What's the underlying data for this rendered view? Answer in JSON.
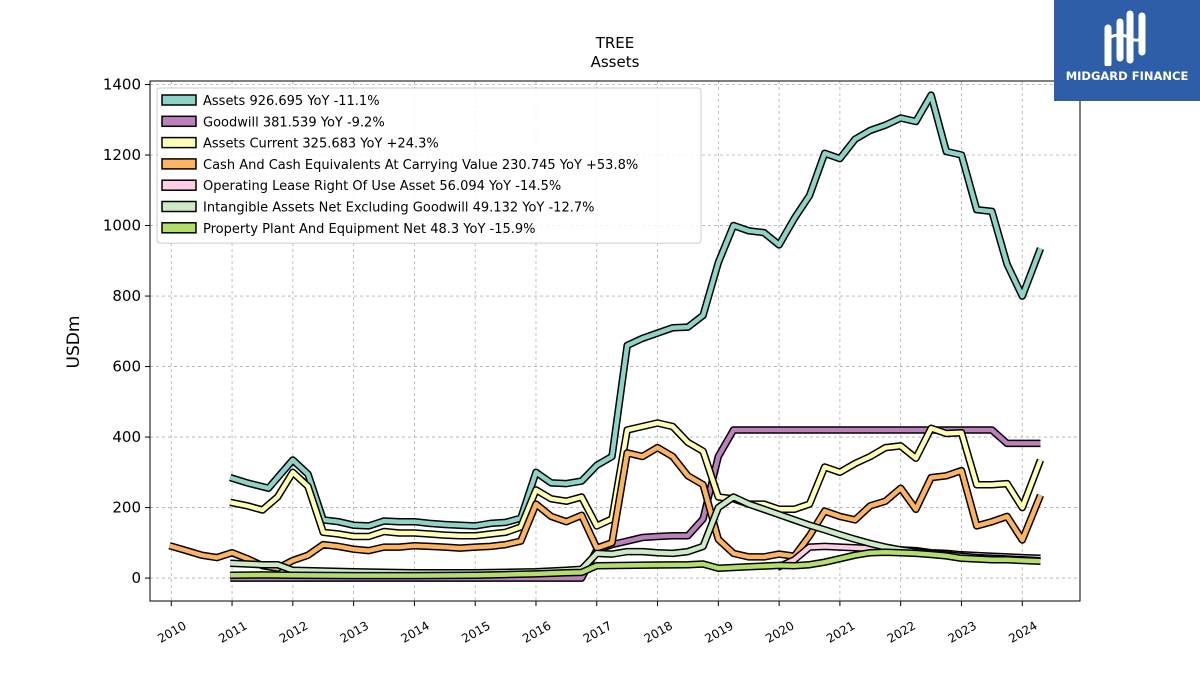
{
  "chart_data": {
    "type": "line",
    "title": "TREE",
    "subtitle": "Assets",
    "ylabel": "USDm",
    "xlabel": "",
    "ylim": [
      -65,
      1410
    ],
    "xlim": [
      2009.65,
      2024.95
    ],
    "x_ticks": [
      2010,
      2011,
      2012,
      2013,
      2014,
      2015,
      2016,
      2017,
      2018,
      2019,
      2020,
      2021,
      2022,
      2023,
      2024
    ],
    "x_tick_labels": [
      "2010",
      "2011",
      "2012",
      "2013",
      "2014",
      "2015",
      "2016",
      "2017",
      "2018",
      "2019",
      "2020",
      "2021",
      "2022",
      "2023",
      "2024"
    ],
    "y_ticks": [
      0,
      200,
      400,
      600,
      800,
      1000,
      1200,
      1400
    ],
    "y_tick_labels": [
      "0",
      "200",
      "400",
      "600",
      "800",
      "1000",
      "1200",
      "1400"
    ],
    "grid": true,
    "legend_position": "top-left",
    "series": [
      {
        "name": "Assets",
        "legend": "Assets  926.695 YoY -11.1%",
        "color": "#8dd3c7",
        "points": [
          [
            2010.97,
            285
          ],
          [
            2011.25,
            270
          ],
          [
            2011.6,
            255
          ],
          [
            2011.75,
            285
          ],
          [
            2012.0,
            335
          ],
          [
            2012.25,
            295
          ],
          [
            2012.5,
            165
          ],
          [
            2012.75,
            160
          ],
          [
            2013.0,
            150
          ],
          [
            2013.25,
            148
          ],
          [
            2013.5,
            162
          ],
          [
            2013.75,
            160
          ],
          [
            2014.0,
            160
          ],
          [
            2014.25,
            155
          ],
          [
            2014.5,
            152
          ],
          [
            2014.75,
            150
          ],
          [
            2015.0,
            148
          ],
          [
            2015.25,
            155
          ],
          [
            2015.5,
            158
          ],
          [
            2015.75,
            170
          ],
          [
            2016.0,
            300
          ],
          [
            2016.25,
            270
          ],
          [
            2016.5,
            268
          ],
          [
            2016.75,
            275
          ],
          [
            2017.0,
            320
          ],
          [
            2017.25,
            345
          ],
          [
            2017.5,
            660
          ],
          [
            2017.75,
            680
          ],
          [
            2018.0,
            695
          ],
          [
            2018.25,
            710
          ],
          [
            2018.5,
            712
          ],
          [
            2018.75,
            745
          ],
          [
            2019.0,
            895
          ],
          [
            2019.25,
            1000
          ],
          [
            2019.5,
            985
          ],
          [
            2019.75,
            980
          ],
          [
            2020.0,
            945
          ],
          [
            2020.25,
            1020
          ],
          [
            2020.5,
            1085
          ],
          [
            2020.75,
            1205
          ],
          [
            2021.0,
            1190
          ],
          [
            2021.25,
            1245
          ],
          [
            2021.5,
            1270
          ],
          [
            2021.75,
            1285
          ],
          [
            2022.0,
            1305
          ],
          [
            2022.25,
            1295
          ],
          [
            2022.5,
            1370
          ],
          [
            2022.75,
            1210
          ],
          [
            2023.0,
            1200
          ],
          [
            2023.25,
            1045
          ],
          [
            2023.5,
            1040
          ],
          [
            2023.75,
            890
          ],
          [
            2024.0,
            800
          ],
          [
            2024.3,
            935
          ]
        ]
      },
      {
        "name": "Goodwill",
        "legend": "Goodwill  381.539 YoY -9.2%",
        "color": "#bc80bd",
        "points": [
          [
            2010.97,
            0
          ],
          [
            2016.75,
            0
          ],
          [
            2017.0,
            80
          ],
          [
            2017.25,
            95
          ],
          [
            2017.5,
            105
          ],
          [
            2017.75,
            115
          ],
          [
            2018.0,
            118
          ],
          [
            2018.25,
            120
          ],
          [
            2018.5,
            120
          ],
          [
            2018.75,
            168
          ],
          [
            2019.0,
            345
          ],
          [
            2019.25,
            420
          ],
          [
            2019.5,
            420
          ],
          [
            2019.75,
            420
          ],
          [
            2020.0,
            420
          ],
          [
            2020.5,
            420
          ],
          [
            2021.0,
            420
          ],
          [
            2021.5,
            420
          ],
          [
            2022.0,
            420
          ],
          [
            2022.5,
            420
          ],
          [
            2023.0,
            420
          ],
          [
            2023.5,
            420
          ],
          [
            2023.75,
            382
          ],
          [
            2024.0,
            382
          ],
          [
            2024.3,
            382
          ]
        ]
      },
      {
        "name": "Assets Current",
        "legend": "Assets Current  325.683 YoY +24.3%",
        "color": "#ffffb3",
        "points": [
          [
            2010.97,
            215
          ],
          [
            2011.25,
            205
          ],
          [
            2011.5,
            193
          ],
          [
            2011.75,
            230
          ],
          [
            2012.0,
            300
          ],
          [
            2012.25,
            260
          ],
          [
            2012.5,
            130
          ],
          [
            2012.75,
            125
          ],
          [
            2013.0,
            118
          ],
          [
            2013.25,
            118
          ],
          [
            2013.5,
            132
          ],
          [
            2013.75,
            128
          ],
          [
            2014.0,
            128
          ],
          [
            2014.25,
            125
          ],
          [
            2014.5,
            122
          ],
          [
            2014.75,
            120
          ],
          [
            2015.0,
            120
          ],
          [
            2015.25,
            125
          ],
          [
            2015.5,
            130
          ],
          [
            2015.75,
            145
          ],
          [
            2016.0,
            250
          ],
          [
            2016.25,
            225
          ],
          [
            2016.5,
            218
          ],
          [
            2016.75,
            230
          ],
          [
            2017.0,
            148
          ],
          [
            2017.25,
            168
          ],
          [
            2017.5,
            420
          ],
          [
            2017.75,
            430
          ],
          [
            2018.0,
            440
          ],
          [
            2018.25,
            430
          ],
          [
            2018.5,
            385
          ],
          [
            2018.75,
            360
          ],
          [
            2019.0,
            230
          ],
          [
            2019.25,
            225
          ],
          [
            2019.5,
            210
          ],
          [
            2019.75,
            210
          ],
          [
            2020.0,
            195
          ],
          [
            2020.25,
            195
          ],
          [
            2020.5,
            210
          ],
          [
            2020.75,
            315
          ],
          [
            2021.0,
            300
          ],
          [
            2021.25,
            325
          ],
          [
            2021.5,
            345
          ],
          [
            2021.75,
            370
          ],
          [
            2022.0,
            375
          ],
          [
            2022.25,
            340
          ],
          [
            2022.5,
            425
          ],
          [
            2022.75,
            410
          ],
          [
            2023.0,
            412
          ],
          [
            2023.25,
            265
          ],
          [
            2023.5,
            265
          ],
          [
            2023.75,
            268
          ],
          [
            2024.0,
            200
          ],
          [
            2024.3,
            335
          ]
        ]
      },
      {
        "name": "Cash And Cash Equivalents At Carrying Value",
        "legend": "Cash And Cash Equivalents At Carrying Value  230.745 YoY +53.8%",
        "color": "#fdb462",
        "points": [
          [
            2009.97,
            92
          ],
          [
            2010.25,
            78
          ],
          [
            2010.5,
            65
          ],
          [
            2010.75,
            58
          ],
          [
            2011.0,
            72
          ],
          [
            2011.25,
            55
          ],
          [
            2011.5,
            35
          ],
          [
            2011.75,
            28
          ],
          [
            2012.0,
            50
          ],
          [
            2012.25,
            65
          ],
          [
            2012.5,
            95
          ],
          [
            2012.75,
            90
          ],
          [
            2013.0,
            82
          ],
          [
            2013.25,
            78
          ],
          [
            2013.5,
            88
          ],
          [
            2013.75,
            88
          ],
          [
            2014.0,
            92
          ],
          [
            2014.25,
            90
          ],
          [
            2014.5,
            88
          ],
          [
            2014.75,
            85
          ],
          [
            2015.0,
            88
          ],
          [
            2015.25,
            90
          ],
          [
            2015.5,
            95
          ],
          [
            2015.75,
            105
          ],
          [
            2016.0,
            210
          ],
          [
            2016.25,
            175
          ],
          [
            2016.5,
            160
          ],
          [
            2016.75,
            178
          ],
          [
            2017.0,
            85
          ],
          [
            2017.25,
            100
          ],
          [
            2017.5,
            355
          ],
          [
            2017.75,
            345
          ],
          [
            2018.0,
            370
          ],
          [
            2018.25,
            345
          ],
          [
            2018.5,
            290
          ],
          [
            2018.75,
            265
          ],
          [
            2019.0,
            110
          ],
          [
            2019.25,
            70
          ],
          [
            2019.5,
            60
          ],
          [
            2019.75,
            60
          ],
          [
            2020.0,
            68
          ],
          [
            2020.25,
            62
          ],
          [
            2020.5,
            120
          ],
          [
            2020.75,
            190
          ],
          [
            2021.0,
            175
          ],
          [
            2021.25,
            165
          ],
          [
            2021.5,
            205
          ],
          [
            2021.75,
            218
          ],
          [
            2022.0,
            255
          ],
          [
            2022.25,
            195
          ],
          [
            2022.5,
            285
          ],
          [
            2022.75,
            290
          ],
          [
            2023.0,
            305
          ],
          [
            2023.25,
            148
          ],
          [
            2023.5,
            160
          ],
          [
            2023.75,
            175
          ],
          [
            2024.0,
            108
          ],
          [
            2024.3,
            235
          ]
        ]
      },
      {
        "name": "Operating Lease Right Of Use Asset",
        "legend": "Operating Lease Right Of Use Asset  56.094 YoY -14.5%",
        "color": "#fccde5",
        "points": [
          [
            2019.97,
            30
          ],
          [
            2020.25,
            52
          ],
          [
            2020.5,
            88
          ],
          [
            2020.75,
            90
          ],
          [
            2021.0,
            88
          ],
          [
            2021.25,
            86
          ],
          [
            2021.5,
            84
          ],
          [
            2021.75,
            82
          ],
          [
            2022.0,
            80
          ],
          [
            2022.25,
            78
          ],
          [
            2022.5,
            72
          ],
          [
            2022.75,
            70
          ],
          [
            2023.0,
            66
          ],
          [
            2023.25,
            64
          ],
          [
            2023.5,
            62
          ],
          [
            2023.75,
            60
          ],
          [
            2024.0,
            58
          ],
          [
            2024.3,
            56
          ]
        ]
      },
      {
        "name": "Intangible Assets Net Excluding Goodwill",
        "legend": "Intangible Assets Net Excluding Goodwill  49.132 YoY -12.7%",
        "color": "#ccebc5",
        "points": [
          [
            2010.97,
            42
          ],
          [
            2011.25,
            40
          ],
          [
            2011.5,
            38
          ],
          [
            2011.75,
            38
          ],
          [
            2012.0,
            22
          ],
          [
            2012.5,
            20
          ],
          [
            2013.0,
            18
          ],
          [
            2014.0,
            15
          ],
          [
            2015.0,
            15
          ],
          [
            2016.0,
            18
          ],
          [
            2016.5,
            22
          ],
          [
            2016.75,
            25
          ],
          [
            2017.0,
            70
          ],
          [
            2017.25,
            68
          ],
          [
            2017.5,
            75
          ],
          [
            2017.75,
            75
          ],
          [
            2018.0,
            72
          ],
          [
            2018.25,
            70
          ],
          [
            2018.5,
            75
          ],
          [
            2018.75,
            90
          ],
          [
            2019.0,
            200
          ],
          [
            2019.25,
            230
          ],
          [
            2019.5,
            210
          ],
          [
            2019.75,
            195
          ],
          [
            2020.0,
            180
          ],
          [
            2020.25,
            165
          ],
          [
            2020.5,
            150
          ],
          [
            2020.75,
            137
          ],
          [
            2021.0,
            123
          ],
          [
            2021.25,
            110
          ],
          [
            2021.5,
            98
          ],
          [
            2021.75,
            88
          ],
          [
            2022.0,
            80
          ],
          [
            2022.25,
            74
          ],
          [
            2022.5,
            70
          ],
          [
            2022.75,
            66
          ],
          [
            2023.0,
            62
          ],
          [
            2023.25,
            58
          ],
          [
            2023.5,
            56
          ],
          [
            2023.75,
            54
          ],
          [
            2024.0,
            52
          ],
          [
            2024.3,
            49
          ]
        ]
      },
      {
        "name": "Property Plant And Equipment Net",
        "legend": "Property Plant And Equipment Net  48.3 YoY -15.9%",
        "color": "#b3de69",
        "points": [
          [
            2010.97,
            8
          ],
          [
            2011.5,
            9
          ],
          [
            2012.0,
            8
          ],
          [
            2013.0,
            7
          ],
          [
            2014.0,
            7
          ],
          [
            2015.0,
            8
          ],
          [
            2015.5,
            10
          ],
          [
            2016.0,
            12
          ],
          [
            2016.5,
            15
          ],
          [
            2016.75,
            16
          ],
          [
            2017.0,
            35
          ],
          [
            2017.5,
            36
          ],
          [
            2018.0,
            37
          ],
          [
            2018.5,
            38
          ],
          [
            2018.75,
            40
          ],
          [
            2019.0,
            28
          ],
          [
            2019.5,
            32
          ],
          [
            2020.0,
            36
          ],
          [
            2020.25,
            35
          ],
          [
            2020.5,
            38
          ],
          [
            2020.75,
            45
          ],
          [
            2021.0,
            55
          ],
          [
            2021.25,
            65
          ],
          [
            2021.5,
            72
          ],
          [
            2021.75,
            73
          ],
          [
            2022.0,
            72
          ],
          [
            2022.25,
            70
          ],
          [
            2022.5,
            67
          ],
          [
            2022.75,
            63
          ],
          [
            2023.0,
            56
          ],
          [
            2023.25,
            54
          ],
          [
            2023.5,
            52
          ],
          [
            2023.75,
            52
          ],
          [
            2024.0,
            50
          ],
          [
            2024.3,
            48
          ]
        ]
      }
    ]
  },
  "logo": {
    "text": "MIDGARD FINANCE",
    "color": "#2f5ea8"
  }
}
